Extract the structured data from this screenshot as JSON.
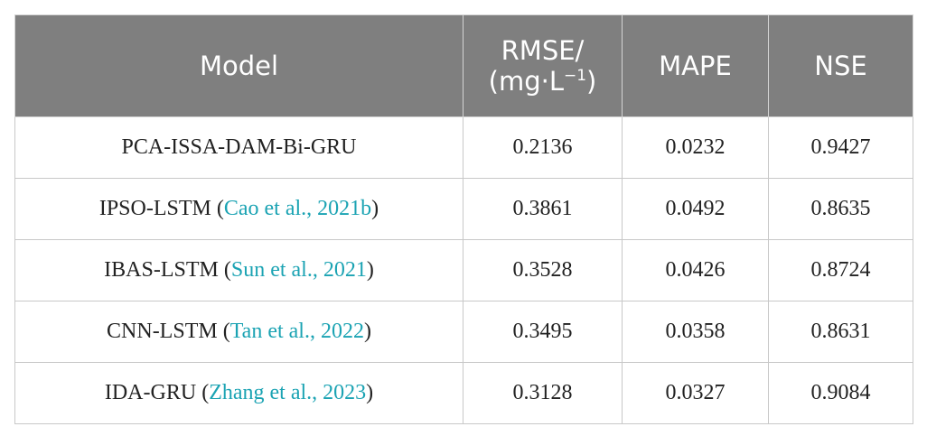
{
  "table": {
    "headers": {
      "model": "Model",
      "rmse_line1": "RMSE/",
      "rmse_line2_pre": "(mg·L",
      "rmse_line2_sup": "−1",
      "rmse_line2_post": ")",
      "mape": "MAPE",
      "nse": "NSE"
    },
    "rows": [
      {
        "model": "PCA-ISSA-DAM-Bi-GRU",
        "ref": "",
        "rmse": "0.2136",
        "mape": "0.0232",
        "nse": "0.9427"
      },
      {
        "model": "IPSO-LSTM",
        "ref": "Cao et al., 2021b",
        "rmse": "0.3861",
        "mape": "0.0492",
        "nse": "0.8635"
      },
      {
        "model": "IBAS-LSTM",
        "ref": "Sun et al., 2021",
        "rmse": "0.3528",
        "mape": "0.0426",
        "nse": "0.8724"
      },
      {
        "model": "CNN-LSTM",
        "ref": "Tan et al., 2022",
        "rmse": "0.3495",
        "mape": "0.0358",
        "nse": "0.8631"
      },
      {
        "model": "IDA-GRU",
        "ref": "Zhang et al., 2023",
        "rmse": "0.3128",
        "mape": "0.0327",
        "nse": "0.9084"
      }
    ],
    "colors": {
      "header_bg": "#7f7f7f",
      "header_text": "#ffffff",
      "citation_link": "#1ba3b3"
    }
  }
}
